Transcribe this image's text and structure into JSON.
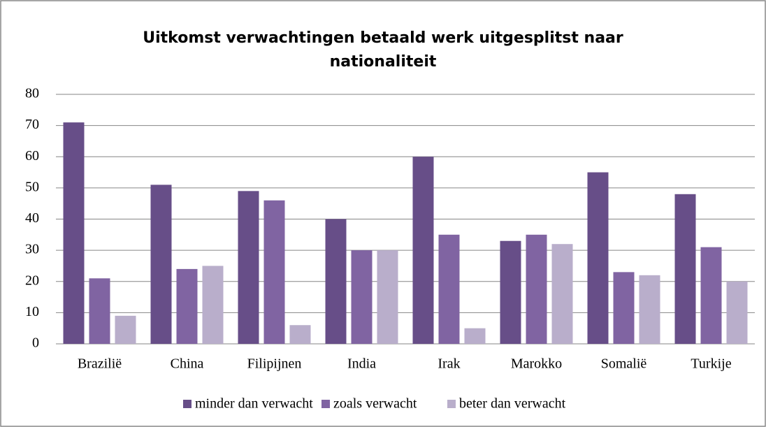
{
  "chart_data": {
    "type": "bar",
    "title": "Uitkomst verwachtingen betaald werk uitgesplitst  naar nationaliteit",
    "categories": [
      "Brazilië",
      "China",
      "Filipijnen",
      "India",
      "Irak",
      "Marokko",
      "Somalië",
      "Turkije"
    ],
    "series": [
      {
        "name": "minder dan verwacht",
        "color": "#674e88",
        "values": [
          71,
          51,
          49,
          40,
          60,
          33,
          55,
          48
        ]
      },
      {
        "name": "zoals verwacht",
        "color": "#8064a2",
        "values": [
          21,
          24,
          46,
          30,
          35,
          35,
          23,
          31
        ]
      },
      {
        "name": "beter dan verwacht",
        "color": "#b9aecb",
        "values": [
          9,
          25,
          6,
          30,
          5,
          32,
          22,
          20
        ]
      }
    ],
    "ylim": [
      0,
      80
    ],
    "yticks": [
      0,
      10,
      20,
      30,
      40,
      50,
      60,
      70,
      80
    ],
    "grid": true,
    "legend": "bottom"
  }
}
